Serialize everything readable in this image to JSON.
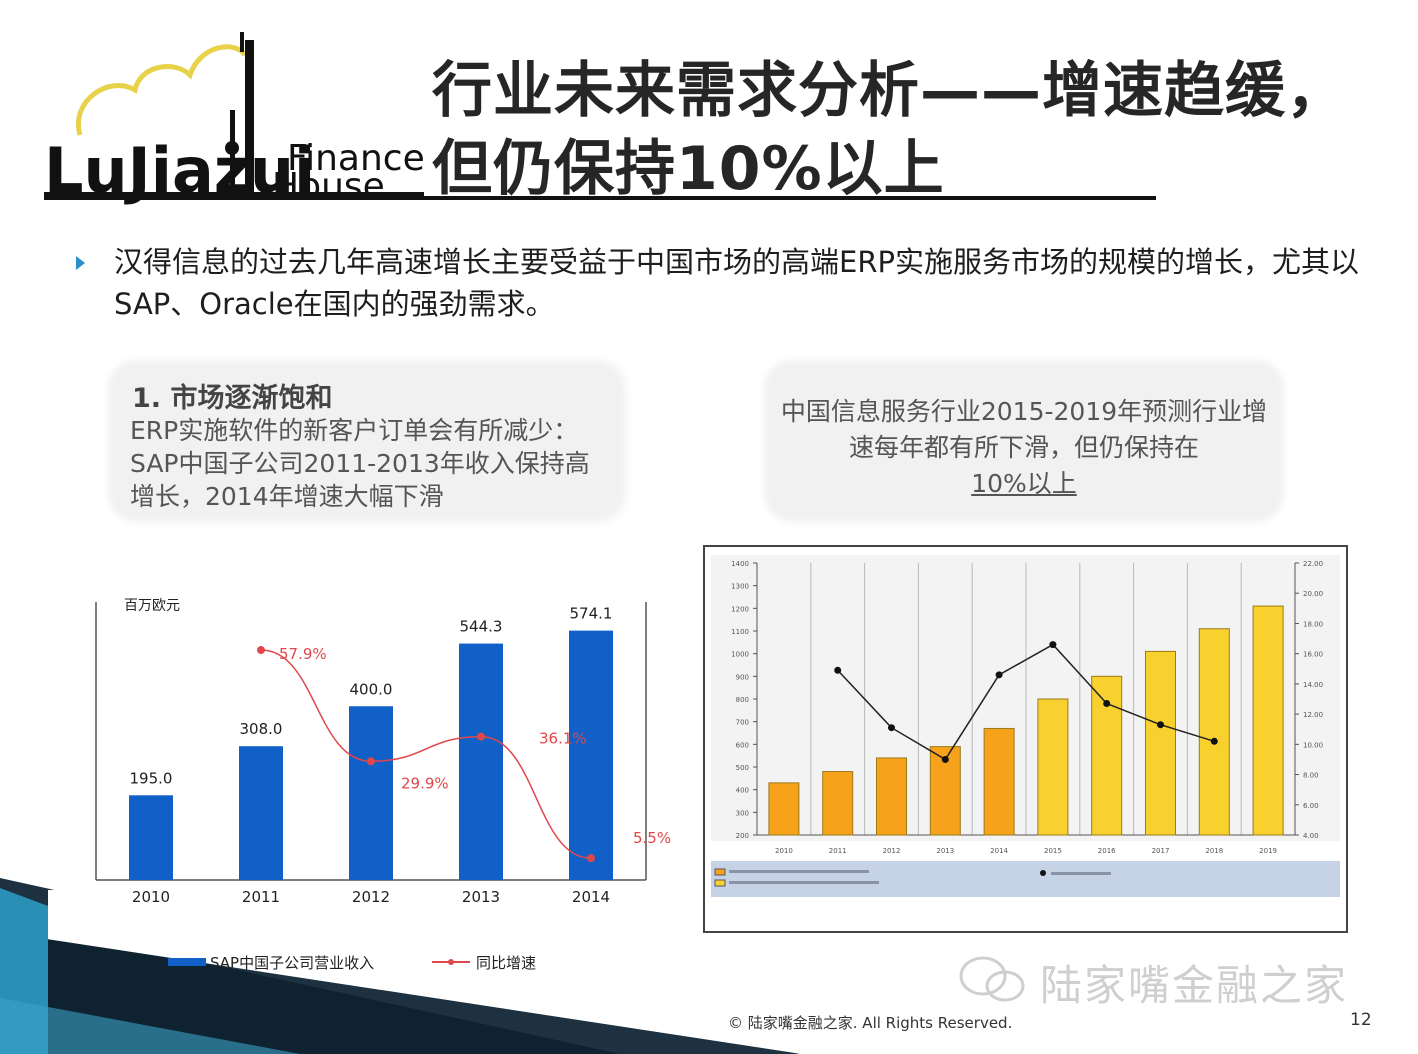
{
  "slide": {
    "title_line1": "行业未来需求分析——增速趋缓，",
    "title_line2": "但仍保持10%以上",
    "logo_text_left": "LuJiazui",
    "logo_text_finance": "Finance",
    "logo_text_house": "House",
    "bullet": "汉得信息的过去几年高速增长主要受益于中国市场的高端ERP实施服务市场的规模的增长，尤其以SAP、Oracle在国内的强劲需求。",
    "callout_left": {
      "title": "1. 市场逐渐饱和",
      "body": "ERP实施软件的新客户订单会有所减少：SAP中国子公司2011-2013年收入保持高增长，2014年增速大幅下滑"
    },
    "callout_right": {
      "text": "中国信息服务行业2015-2019年预测行业增速每年都有所下滑，但仍保持在",
      "underline": "10%以上"
    },
    "watermark": "陆家嘴金融之家",
    "copyright": "© 陆家嘴金融之家. All Rights Reserved.",
    "page_number": "12"
  },
  "colors": {
    "bar_blue": "#1160c8",
    "line_red": "#e0474a",
    "bar_orange": "#f7a21b",
    "bar_yellow": "#f9d12e",
    "bullet_blue": "#2c8fc9",
    "deco_teal": "#2a8fb5",
    "legend_band": "#c6d3e7"
  },
  "chart_data": [
    {
      "type": "bar",
      "ylabel": "百万欧元",
      "categories": [
        "2010",
        "2011",
        "2012",
        "2013",
        "2014"
      ],
      "series": [
        {
          "name": "SAP中国子公司营业收入",
          "type": "bar",
          "values": [
            195.0,
            308.0,
            400.0,
            544.3,
            574.1
          ],
          "labels": [
            "195.0",
            "308.0",
            "400.0",
            "544.3",
            "574.1"
          ]
        },
        {
          "name": "同比增速",
          "type": "line",
          "values": [
            null,
            57.9,
            29.9,
            36.1,
            5.5
          ],
          "labels": [
            "",
            "57.9%",
            "29.9%",
            "36.1%",
            "5.5%"
          ]
        }
      ],
      "ylim": [
        0,
        640
      ],
      "y2lim": [
        0,
        70
      ],
      "legend": "bottom"
    },
    {
      "type": "bar",
      "categories": [
        "2010",
        "2011",
        "2012",
        "2013",
        "2014",
        "2015",
        "2016",
        "2017",
        "2018",
        "2019"
      ],
      "series": [
        {
          "type": "bar",
          "values": [
            430,
            480,
            540,
            590,
            670,
            800,
            900,
            1010,
            1110,
            1210
          ]
        },
        {
          "type": "line",
          "values": [
            null,
            14.9,
            11.1,
            9.0,
            14.6,
            16.6,
            12.7,
            11.3,
            10.2,
            null
          ]
        }
      ],
      "ylim": [
        200,
        1400
      ],
      "yticks": [
        200,
        300,
        400,
        500,
        600,
        700,
        800,
        900,
        1000,
        1100,
        1200,
        1300,
        1400
      ],
      "y2lim": [
        4,
        22
      ],
      "y2ticks": [
        4,
        6,
        8,
        10,
        12,
        14,
        16,
        18,
        20,
        22
      ],
      "grid": true,
      "legend": "bottom"
    }
  ]
}
